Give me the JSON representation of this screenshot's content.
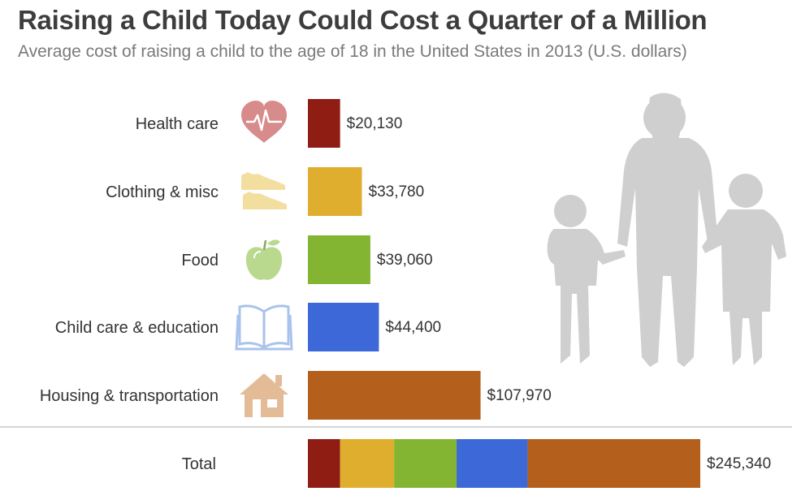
{
  "chart_data": {
    "type": "bar",
    "orientation": "horizontal",
    "title": "Raising a Child Today Could Cost a Quarter of a Million",
    "subtitle": "Average cost of raising a child to the age of 18 in the United States in 2013 (U.S. dollars)",
    "xlabel": "",
    "ylabel": "",
    "xlim": [
      0,
      245340
    ],
    "grid": false,
    "legend": "none",
    "categories": [
      "Health care",
      "Clothing & misc",
      "Food",
      "Child care & education",
      "Housing & transportation"
    ],
    "values": [
      20130,
      33780,
      39060,
      44400,
      107970
    ],
    "value_labels": [
      "$20,130",
      "$33,780",
      "$39,060",
      "$44,400",
      "$107,970"
    ],
    "colors": [
      "#8f1d14",
      "#e0ae2e",
      "#84b532",
      "#3c68d8",
      "#b55f1c"
    ],
    "icons": [
      "heart-pulse-icon",
      "shoes-icon",
      "apple-icon",
      "open-book-icon",
      "house-icon"
    ],
    "total": {
      "label": "Total",
      "value": 245340,
      "value_label": "$245,340"
    }
  },
  "illustration": "family-silhouette-icon"
}
